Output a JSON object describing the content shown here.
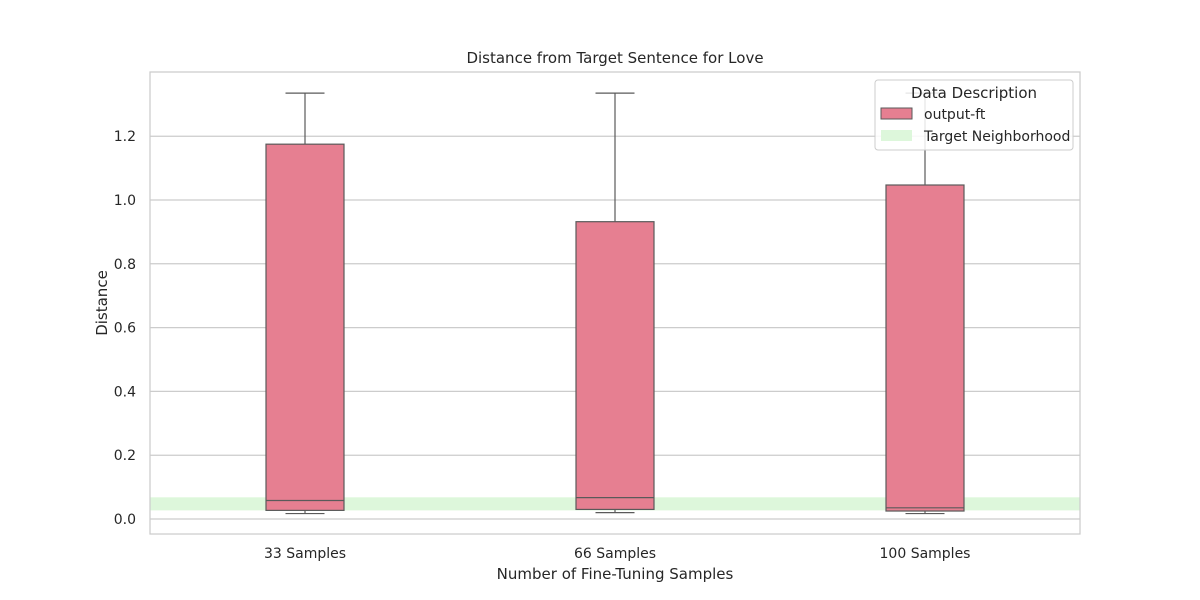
{
  "chart_data": {
    "type": "box",
    "title": "Distance from Target Sentence for Love",
    "xlabel": "Number of Fine-Tuning Samples",
    "ylabel": "Distance",
    "categories": [
      "33 Samples",
      "66 Samples",
      "100 Samples"
    ],
    "ylim": [
      -0.05,
      1.4
    ],
    "yticks": [
      0.0,
      0.2,
      0.4,
      0.6,
      0.8,
      1.0,
      1.2
    ],
    "grid": "horizontal",
    "series": [
      {
        "name": "output-ft",
        "color": "#e67f91",
        "boxes": [
          {
            "whislo": 0.017,
            "q1": 0.027,
            "med": 0.058,
            "q3": 1.175,
            "whishi": 1.335
          },
          {
            "whislo": 0.02,
            "q1": 0.03,
            "med": 0.067,
            "q3": 0.932,
            "whishi": 1.335
          },
          {
            "whislo": 0.017,
            "q1": 0.025,
            "med": 0.035,
            "q3": 1.047,
            "whishi": 1.335
          }
        ]
      }
    ],
    "band": {
      "name": "Target Neighborhood",
      "ymin": 0.027,
      "ymax": 0.068,
      "color": "#ddf7db"
    },
    "legend": {
      "title": "Data Description",
      "placement": "top-right",
      "entries": [
        "output-ft",
        "Target Neighborhood"
      ]
    }
  }
}
